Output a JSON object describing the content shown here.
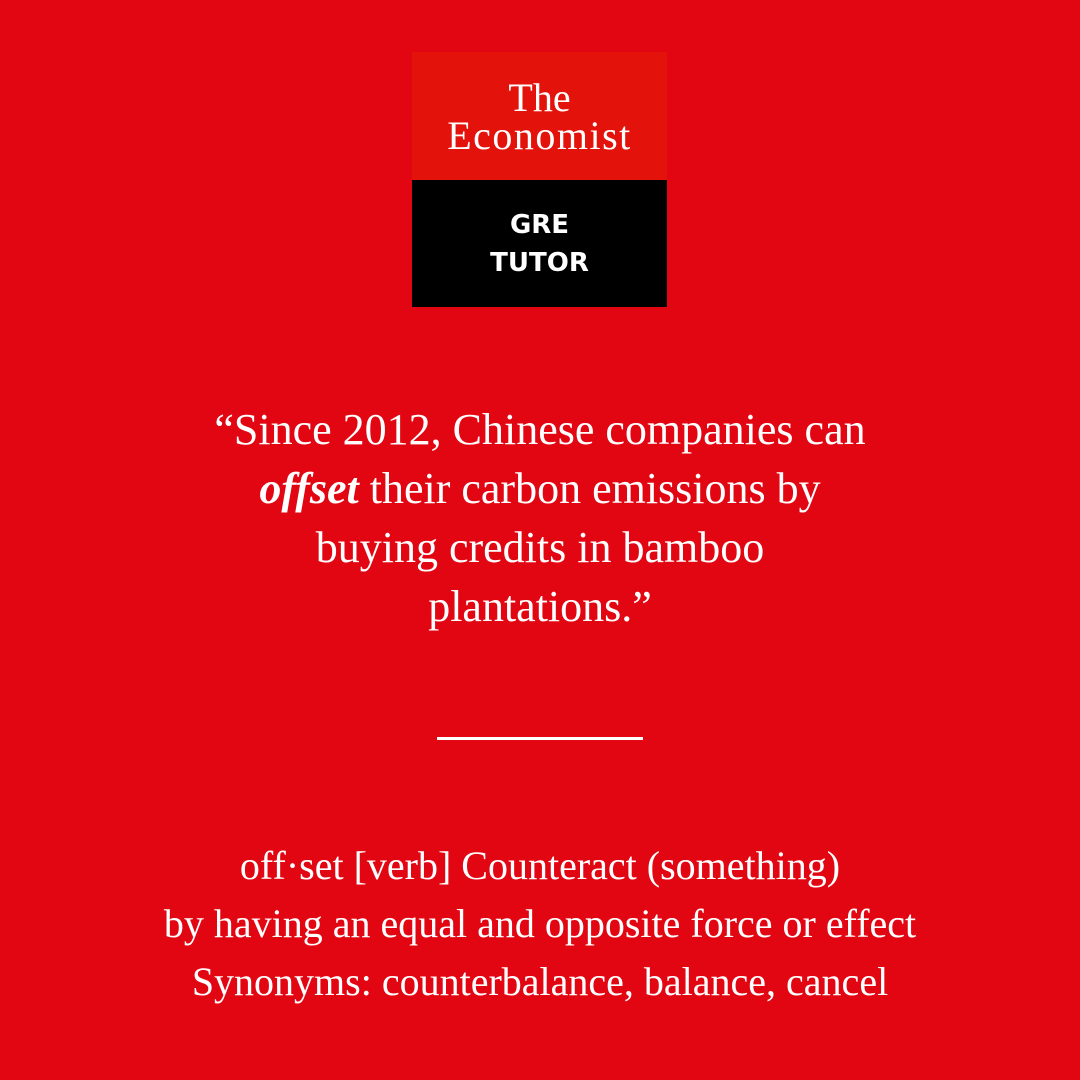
{
  "logo": {
    "brand_line1": "The",
    "brand_line2": "Economist",
    "product_line1": "GRE",
    "product_line2": "TUTOR"
  },
  "quote": {
    "line1": "“Since 2012, Chinese companies can",
    "line2_word": "offset",
    "line2_rest": " their carbon emissions by",
    "line3": "buying credits in bamboo",
    "line4": "plantations.”"
  },
  "definition": {
    "line1": "off·set [verb] Counteract (something)",
    "line2": "by having an equal and opposite force or effect",
    "line3": "Synonyms: counterbalance, balance, cancel"
  },
  "colors": {
    "background": "#e20612",
    "logo_red": "#e3120b",
    "logo_black": "#000000",
    "text": "#ffffff"
  }
}
